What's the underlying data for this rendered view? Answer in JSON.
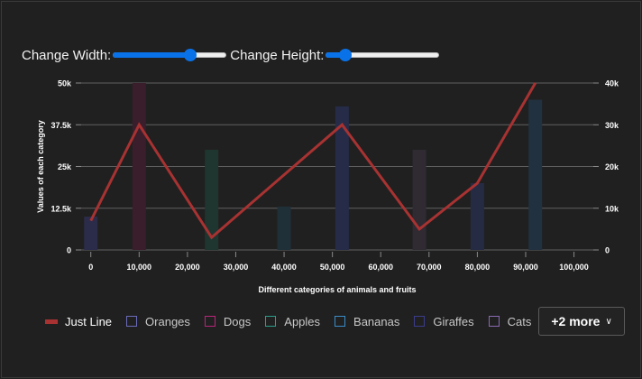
{
  "controls": {
    "width_label": "Change Width:",
    "width_value": 0.68,
    "height_label": "Change Height:",
    "height_value": 0.17
  },
  "legend": {
    "items": [
      {
        "label": "Just Line",
        "type": "line",
        "color": "#a83232"
      },
      {
        "label": "Oranges",
        "type": "box",
        "color": "#6b6bb8"
      },
      {
        "label": "Dogs",
        "type": "box",
        "color": "#b8267a"
      },
      {
        "label": "Apples",
        "type": "box",
        "color": "#2a9e8a"
      },
      {
        "label": "Bananas",
        "type": "box",
        "color": "#3a8cc8"
      },
      {
        "label": "Giraffes",
        "type": "box",
        "color": "#3c3c8c"
      },
      {
        "label": "Cats",
        "type": "box",
        "color": "#8a6ab0"
      }
    ],
    "more_label": "+2 more",
    "more_icon": "chevron-down-icon"
  },
  "chart_data": {
    "type": "bar",
    "xlabel": "Different categories of animals and fruits",
    "ylabel": "Values of each category",
    "xlim": [
      -2000,
      104000
    ],
    "ylim_left": [
      0,
      50000
    ],
    "ylim_right": [
      0,
      40000
    ],
    "x_ticks": [
      "0",
      "10,000",
      "20,000",
      "30,000",
      "40,000",
      "50,000",
      "60,000",
      "70,000",
      "80,000",
      "90,000",
      "100,000"
    ],
    "x_tick_values": [
      0,
      10000,
      20000,
      30000,
      40000,
      50000,
      60000,
      70000,
      80000,
      90000,
      100000
    ],
    "y_ticks_left": [
      "0",
      "12.5k",
      "25k",
      "37.5k",
      "50k"
    ],
    "y_tick_values_left": [
      0,
      12500,
      25000,
      37500,
      50000
    ],
    "y_ticks_right": [
      "0",
      "10k",
      "20k",
      "30k",
      "40k"
    ],
    "y_tick_values_right": [
      0,
      10000,
      20000,
      30000,
      40000
    ],
    "bar_width": 2800,
    "bars": [
      {
        "x": 0,
        "value": 10000,
        "color": "#2b2b4a"
      },
      {
        "x": 10000,
        "value": 50000,
        "color": "#3a1e2c"
      },
      {
        "x": 25000,
        "value": 30000,
        "color": "#1f3530"
      },
      {
        "x": 40000,
        "value": 13000,
        "color": "#1f3038"
      },
      {
        "x": 52000,
        "value": 43000,
        "color": "#262c48"
      },
      {
        "x": 68000,
        "value": 30000,
        "color": "#302a32"
      },
      {
        "x": 80000,
        "value": 20000,
        "color": "#262b44"
      },
      {
        "x": 92000,
        "value": 45000,
        "color": "#223140"
      }
    ],
    "line": {
      "name": "Just Line",
      "color": "#a83232",
      "axis": "right",
      "points": [
        [
          0,
          7000
        ],
        [
          10000,
          30000
        ],
        [
          25000,
          3000
        ],
        [
          52000,
          30000
        ],
        [
          68000,
          5000
        ],
        [
          80000,
          16000
        ],
        [
          92000,
          40000
        ]
      ]
    }
  }
}
